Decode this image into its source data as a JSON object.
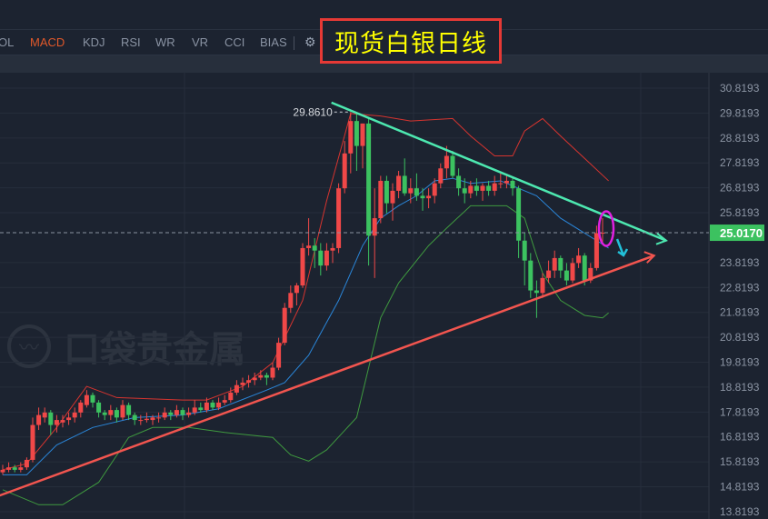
{
  "toolbar": {
    "tabs": [
      {
        "label": "OL",
        "active": false
      },
      {
        "label": "MACD",
        "active": true
      },
      {
        "label": "KDJ",
        "active": false
      },
      {
        "label": "RSI",
        "active": false
      },
      {
        "label": "WR",
        "active": false
      },
      {
        "label": "VR",
        "active": false
      },
      {
        "label": "CCI",
        "active": false
      },
      {
        "label": "BIAS",
        "active": false
      }
    ],
    "settings_icon": "gear-icon"
  },
  "annotation_title": "现货白银日线",
  "watermark": "口袋贵金属",
  "colors": {
    "up": "#f04848",
    "down": "#3cc260",
    "upper_band": "#d7342f",
    "middle_band": "#2a86d9",
    "lower_band": "#3f9a3f",
    "resistance_line": "#4de8b0",
    "support_line": "#f2554f",
    "current_price_bg": "#3cc260",
    "highlight_ellipse": "#e020e0",
    "arrow": "#22c0d8"
  },
  "chart_data": {
    "type": "candlestick",
    "y_axis": {
      "ticks": [
        30.8193,
        29.8193,
        28.8193,
        27.8193,
        26.8193,
        25.8193,
        23.8193,
        22.8193,
        21.8193,
        20.8193,
        19.8193,
        18.8193,
        17.8193,
        16.8193,
        15.8193,
        14.8193,
        13.8193
      ],
      "tick_labels": [
        "30.8193",
        "29.8193",
        "28.8193",
        "27.8193",
        "26.8193",
        "25.8193",
        "23.8193",
        "22.8193",
        "21.8193",
        "20.8193",
        "19.8193",
        "18.8193",
        "17.8193",
        "16.8193",
        "15.8193",
        "14.8193",
        "13.8193"
      ],
      "range": [
        13.8193,
        30.8193
      ],
      "position": "right"
    },
    "grid": true,
    "current_price": "25.0170",
    "max_label": "29.8610",
    "ohlc": [
      [
        15.4,
        15.7,
        15.3,
        15.5
      ],
      [
        15.5,
        15.8,
        15.4,
        15.6
      ],
      [
        15.6,
        15.7,
        15.4,
        15.5
      ],
      [
        15.5,
        15.8,
        15.4,
        15.6
      ],
      [
        15.6,
        16.0,
        15.5,
        15.9
      ],
      [
        15.9,
        17.6,
        15.8,
        17.3
      ],
      [
        17.3,
        18.0,
        17.1,
        17.7
      ],
      [
        17.6,
        18.0,
        17.4,
        17.8
      ],
      [
        17.8,
        17.9,
        16.9,
        17.3
      ],
      [
        17.3,
        17.7,
        17.0,
        17.5
      ],
      [
        17.4,
        17.7,
        17.2,
        17.5
      ],
      [
        17.5,
        17.8,
        17.3,
        17.6
      ],
      [
        17.6,
        18.0,
        17.4,
        17.8
      ],
      [
        17.8,
        18.3,
        17.6,
        18.2
      ],
      [
        18.1,
        18.7,
        18.0,
        18.5
      ],
      [
        18.5,
        18.6,
        18.0,
        18.2
      ],
      [
        18.2,
        18.3,
        17.6,
        17.8
      ],
      [
        17.8,
        17.9,
        17.5,
        17.7
      ],
      [
        17.7,
        18.1,
        17.5,
        17.9
      ],
      [
        17.9,
        18.0,
        17.4,
        17.6
      ],
      [
        17.6,
        18.3,
        17.5,
        18.1
      ],
      [
        18.1,
        18.2,
        17.5,
        17.7
      ],
      [
        17.7,
        17.8,
        17.3,
        17.5
      ],
      [
        17.5,
        17.7,
        17.3,
        17.5
      ],
      [
        17.5,
        17.8,
        17.4,
        17.55
      ],
      [
        17.5,
        17.7,
        17.3,
        17.6
      ],
      [
        17.6,
        17.8,
        17.4,
        17.6
      ],
      [
        17.6,
        18.0,
        17.5,
        17.8
      ],
      [
        17.8,
        17.9,
        17.5,
        17.7
      ],
      [
        17.7,
        18.1,
        17.6,
        17.9
      ],
      [
        17.9,
        18.0,
        17.5,
        17.7
      ],
      [
        17.7,
        18.0,
        17.6,
        17.8
      ],
      [
        17.8,
        18.3,
        17.7,
        18.0
      ],
      [
        18.0,
        18.2,
        17.8,
        17.9
      ],
      [
        17.9,
        18.4,
        17.8,
        18.2
      ],
      [
        18.2,
        18.3,
        17.9,
        18.0
      ],
      [
        18.0,
        18.4,
        17.9,
        18.2
      ],
      [
        18.2,
        18.5,
        18.1,
        18.3
      ],
      [
        18.3,
        18.8,
        18.2,
        18.6
      ],
      [
        18.6,
        19.1,
        18.5,
        18.9
      ],
      [
        18.9,
        19.2,
        18.7,
        19.0
      ],
      [
        19.0,
        19.3,
        18.8,
        19.1
      ],
      [
        19.1,
        19.4,
        18.9,
        19.2
      ],
      [
        19.2,
        19.5,
        19.1,
        19.3
      ],
      [
        19.3,
        19.4,
        18.9,
        19.2
      ],
      [
        19.2,
        19.8,
        19.1,
        19.6
      ],
      [
        19.6,
        20.8,
        19.5,
        20.6
      ],
      [
        20.6,
        22.2,
        20.5,
        22.0
      ],
      [
        22.0,
        22.9,
        21.8,
        22.6
      ],
      [
        22.6,
        23.0,
        22.1,
        22.9
      ],
      [
        22.9,
        24.6,
        22.8,
        24.4
      ],
      [
        24.4,
        25.6,
        24.1,
        24.5
      ],
      [
        24.5,
        24.8,
        23.6,
        24.3
      ],
      [
        24.3,
        24.6,
        23.3,
        23.7
      ],
      [
        23.7,
        24.6,
        23.5,
        24.3
      ],
      [
        24.3,
        24.6,
        23.8,
        24.4
      ],
      [
        24.4,
        27.0,
        24.2,
        26.8
      ],
      [
        26.8,
        28.7,
        26.6,
        28.2
      ],
      [
        28.2,
        29.861,
        27.4,
        29.5
      ],
      [
        29.5,
        29.8,
        27.5,
        28.5
      ],
      [
        28.5,
        29.4,
        27.6,
        29.4
      ],
      [
        29.4,
        29.6,
        23.7,
        24.9
      ],
      [
        24.9,
        26.8,
        23.2,
        25.6
      ],
      [
        25.6,
        27.3,
        25.4,
        27.1
      ],
      [
        27.1,
        27.3,
        25.8,
        26.2
      ],
      [
        26.2,
        27.0,
        25.5,
        26.7
      ],
      [
        26.7,
        27.5,
        26.4,
        27.3
      ],
      [
        27.3,
        28.0,
        26.5,
        26.6
      ],
      [
        26.6,
        27.2,
        26.2,
        26.8
      ],
      [
        26.8,
        27.4,
        26.3,
        26.5
      ],
      [
        26.5,
        26.8,
        25.9,
        26.4
      ],
      [
        26.4,
        26.8,
        26.0,
        26.5
      ],
      [
        26.5,
        27.2,
        26.2,
        27.0
      ],
      [
        27.0,
        27.8,
        26.8,
        27.6
      ],
      [
        27.6,
        28.5,
        27.2,
        28.1
      ],
      [
        28.1,
        28.3,
        27.2,
        27.3
      ],
      [
        27.3,
        27.6,
        26.5,
        26.8
      ],
      [
        26.8,
        27.2,
        26.2,
        26.6
      ],
      [
        26.6,
        27.1,
        26.4,
        26.9
      ],
      [
        26.9,
        27.2,
        26.5,
        26.7
      ],
      [
        26.7,
        27.0,
        26.3,
        26.9
      ],
      [
        26.9,
        27.1,
        26.5,
        26.7
      ],
      [
        26.7,
        27.3,
        26.5,
        27.0
      ],
      [
        27.0,
        27.4,
        26.8,
        27.0
      ],
      [
        27.0,
        27.3,
        26.8,
        27.1
      ],
      [
        27.1,
        27.2,
        26.5,
        26.8
      ],
      [
        26.8,
        26.9,
        24.0,
        24.7
      ],
      [
        24.7,
        25.0,
        22.9,
        23.9
      ],
      [
        23.9,
        24.2,
        22.4,
        22.7
      ],
      [
        22.7,
        23.1,
        21.6,
        22.6
      ],
      [
        22.6,
        23.4,
        22.4,
        23.2
      ],
      [
        23.2,
        23.9,
        23.0,
        23.5
      ],
      [
        23.5,
        24.3,
        23.2,
        24.0
      ],
      [
        24.0,
        24.1,
        23.2,
        23.5
      ],
      [
        23.5,
        23.8,
        22.9,
        23.1
      ],
      [
        23.1,
        24.0,
        23.0,
        23.8
      ],
      [
        23.8,
        24.4,
        23.6,
        24.1
      ],
      [
        24.1,
        24.2,
        22.9,
        23.1
      ],
      [
        23.1,
        23.8,
        23.0,
        23.6
      ],
      [
        23.6,
        25.3,
        23.5,
        25.0
      ],
      [
        25.0,
        25.6,
        24.6,
        25.017
      ]
    ],
    "bollinger": {
      "upper": [
        [
          0,
          15.5
        ],
        [
          4,
          15.75
        ],
        [
          9,
          17.2
        ],
        [
          14,
          18.85
        ],
        [
          19,
          18.4
        ],
        [
          30,
          18.3
        ],
        [
          34,
          18.3
        ],
        [
          40,
          18.85
        ],
        [
          45,
          19.8
        ],
        [
          50,
          22.3
        ],
        [
          54,
          26.3
        ],
        [
          58,
          29.8
        ],
        [
          63,
          29.7
        ],
        [
          68,
          29.5
        ],
        [
          75,
          29.6
        ],
        [
          78,
          28.9
        ],
        [
          82,
          28.1
        ],
        [
          85,
          28.1
        ],
        [
          87,
          29.1
        ],
        [
          90,
          29.6
        ],
        [
          93,
          28.9
        ],
        [
          97,
          28.0
        ],
        [
          101,
          27.1
        ]
      ],
      "middle": [
        [
          0,
          15.3
        ],
        [
          4,
          15.3
        ],
        [
          9,
          16.5
        ],
        [
          15,
          17.2
        ],
        [
          22,
          17.6
        ],
        [
          30,
          17.7
        ],
        [
          36,
          17.95
        ],
        [
          44,
          18.7
        ],
        [
          47,
          19.0
        ],
        [
          51,
          20.1
        ],
        [
          56,
          22.3
        ],
        [
          60,
          24.5
        ],
        [
          63,
          25.6
        ],
        [
          66,
          26.1
        ],
        [
          69,
          26.5
        ],
        [
          72,
          27.1
        ],
        [
          75,
          27.2
        ],
        [
          78,
          27.0
        ],
        [
          83,
          27.1
        ],
        [
          86,
          26.8
        ],
        [
          89,
          26.5
        ],
        [
          93,
          25.6
        ],
        [
          97,
          25.0
        ],
        [
          101,
          24.4
        ]
      ],
      "lower": [
        [
          0,
          14.7
        ],
        [
          6,
          14.1
        ],
        [
          10,
          14.1
        ],
        [
          16,
          15.0
        ],
        [
          21,
          16.8
        ],
        [
          25,
          17.2
        ],
        [
          31,
          17.2
        ],
        [
          37,
          17.0
        ],
        [
          45,
          16.8
        ],
        [
          48,
          16.1
        ],
        [
          51,
          15.85
        ],
        [
          54,
          16.3
        ],
        [
          59,
          17.6
        ],
        [
          63,
          21.6
        ],
        [
          66,
          23.0
        ],
        [
          71,
          24.5
        ],
        [
          74,
          25.2
        ],
        [
          78,
          26.1
        ],
        [
          84,
          26.1
        ],
        [
          87,
          25.6
        ],
        [
          89,
          24.1
        ],
        [
          90,
          23.4
        ],
        [
          93,
          22.3
        ],
        [
          97,
          21.7
        ],
        [
          100,
          21.6
        ],
        [
          101,
          21.8
        ]
      ]
    },
    "trendlines": {
      "resistance": [
        [
          54.8,
          30.24
        ],
        [
          110.6,
          24.7
        ]
      ],
      "support": [
        [
          -0.5,
          14.47
        ],
        [
          108.6,
          24.1
        ]
      ]
    }
  }
}
